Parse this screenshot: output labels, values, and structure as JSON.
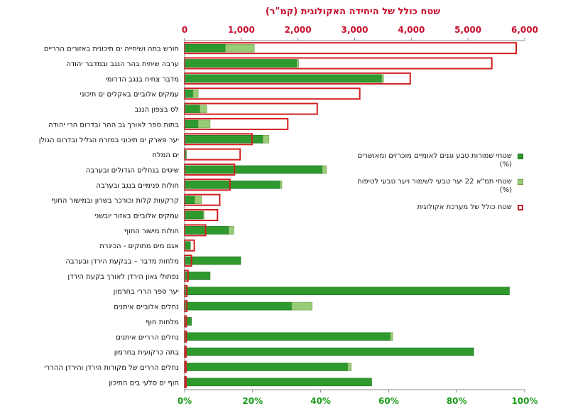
{
  "chart_data": {
    "type": "bar",
    "orientation": "horizontal",
    "title": "שטח כולל של היחידה האקולוגית (קמ\"ר)",
    "top_axis": {
      "range": [
        0,
        6000
      ],
      "ticks": [
        "0",
        "1,000",
        "2,000",
        "3,000",
        "4,000",
        "5,000",
        "6,000"
      ],
      "color": "#c8102e"
    },
    "bottom_axis": {
      "range": [
        0,
        100
      ],
      "ticks": [
        "0%",
        "20%",
        "40%",
        "60%",
        "80%",
        "100%"
      ],
      "color": "#1a9c1a"
    },
    "categories": [
      "חורש בתה ושיחייה ים תיכונית באזורים הרריים",
      "ערבה שיחית בהר הנגב ובמדבר יהודה",
      "מדבר צחיח בנגב הדרומי",
      "עמקים אלוביים באקלים ים תיכוני",
      "לס בצפון הנגב",
      "בתות ספר לאורך גב ההר ובדרום הרי יהודה",
      "יער פארק ים תיכוני במזרח הגליל ובדרום הגולן",
      "ים המלח",
      "שיטים בנחלים הגדולים ובערבה",
      "חולות פנימיים בנגב ובערבה",
      "קרקעות קלות וכורכר בשרון ובמישור החוף",
      "עמקים אלוביים באזור יובשני",
      "חולות מישור החוף",
      "אגם מים מתוקים - הכינרת",
      "מלחות מדבר – בבקעת הירדן ובערבה",
      "נפתולי גאון הירדן לאורך בקעת הירדן",
      "יער ספר הררי בחרמון",
      "נחלים אלוביים איתנים",
      "מלחות חוף",
      "נחלים הרריים איתנים",
      "בתה כרקועית בחרמון",
      "נחלים הררים של מקורות הירדן והירדן ההררי",
      "חוף ים סלעי בים התיכון"
    ],
    "series": [
      {
        "name": "שטחי שמורות טבע וגנים לאומיים מוכרזים ומאושרים (%)",
        "color": "#2e9a2e",
        "values": [
          12,
          33,
          58,
          2.5,
          4.5,
          4,
          23,
          0.5,
          40.5,
          28,
          3,
          5.5,
          13,
          1.7,
          16.5,
          7.5,
          95.5,
          31.5,
          2,
          60.5,
          85,
          48,
          55
        ]
      },
      {
        "name": "שטחי תמ\"א 22 יער טבעי לשימור ויער טבעי לטיפוח (%)",
        "color": "#99cc77",
        "values": [
          8.5,
          0.5,
          0.5,
          1.5,
          2,
          3.5,
          1.8,
          0,
          1.2,
          0.6,
          2,
          0.2,
          1.5,
          0,
          0,
          0,
          0,
          6,
          0,
          0.7,
          0,
          1,
          0
        ]
      },
      {
        "name": "שטח כולל של מערכת אקולוגית",
        "color": "#d21f1f",
        "unit": "קמ\"ר",
        "values": [
          5850,
          5420,
          3980,
          3090,
          2340,
          1820,
          1190,
          980,
          880,
          800,
          620,
          580,
          370,
          170,
          120,
          60,
          40,
          40,
          30,
          30,
          25,
          20,
          15
        ]
      }
    ]
  }
}
